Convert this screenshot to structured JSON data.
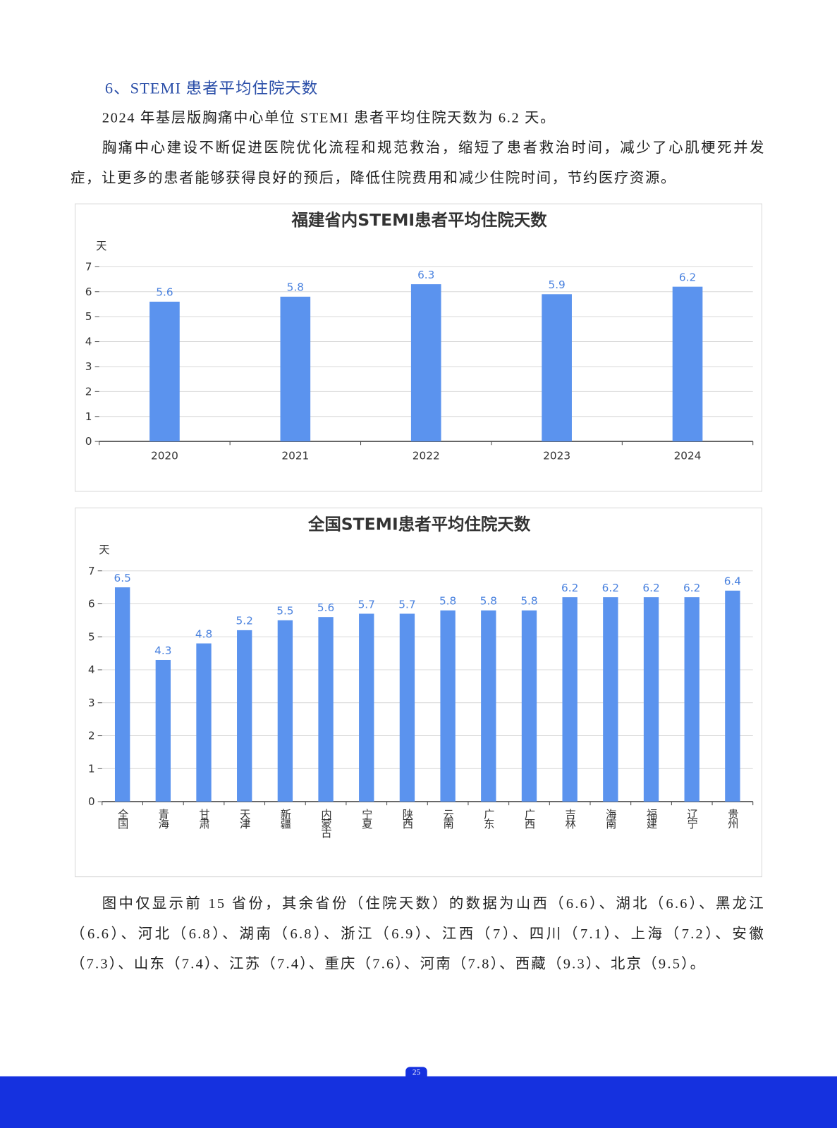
{
  "section_title": "6、STEMI 患者平均住院天数",
  "paragraphs": [
    "2024 年基层版胸痛中心单位 STEMI 患者平均住院天数为 6.2 天。",
    "胸痛中心建设不断促进医院优化流程和规范救治，缩短了患者救治时间，减少了心肌梗死并发症，让更多的患者能够获得良好的预后，降低住院费用和减少住院时间，节约医疗资源。"
  ],
  "note": "图中仅显示前 15 省份，其余省份（住院天数）的数据为山西（6.6）、湖北（6.6）、黑龙江（6.6）、河北（6.8）、湖南（6.8）、浙江（6.9）、江西（7）、四川（7.1）、上海（7.2）、安徽（7.3）、山东（7.4）、江苏（7.4）、重庆（7.6）、河南（7.8）、西藏（9.3）、北京（9.5）。",
  "page_number": "25",
  "chart_data": [
    {
      "type": "bar",
      "title": "福建省内STEMI患者平均住院天数",
      "y_label": "天",
      "categories": [
        "2020",
        "2021",
        "2022",
        "2023",
        "2024"
      ],
      "values": [
        5.6,
        5.8,
        6.3,
        5.9,
        6.2
      ],
      "color": "#5b93ee",
      "ylim": [
        0,
        7
      ],
      "yticks": [
        0,
        1,
        2,
        3,
        4,
        5,
        6,
        7
      ],
      "grid": true,
      "vertical_labels": false
    },
    {
      "type": "bar",
      "title": "全国STEMI患者平均住院天数",
      "y_label": "天",
      "categories": [
        "全国",
        "青海",
        "甘肃",
        "天津",
        "新疆",
        "内蒙古",
        "宁夏",
        "陕西",
        "云南",
        "广东",
        "广西",
        "吉林",
        "海南",
        "福建",
        "辽宁",
        "贵州"
      ],
      "values": [
        6.5,
        4.3,
        4.8,
        5.2,
        5.5,
        5.6,
        5.7,
        5.7,
        5.8,
        5.8,
        5.8,
        6.2,
        6.2,
        6.2,
        6.2,
        6.4
      ],
      "color": "#5b93ee",
      "ylim": [
        0,
        7
      ],
      "yticks": [
        0,
        1,
        2,
        3,
        4,
        5,
        6,
        7
      ],
      "grid": true,
      "vertical_labels": true
    }
  ]
}
